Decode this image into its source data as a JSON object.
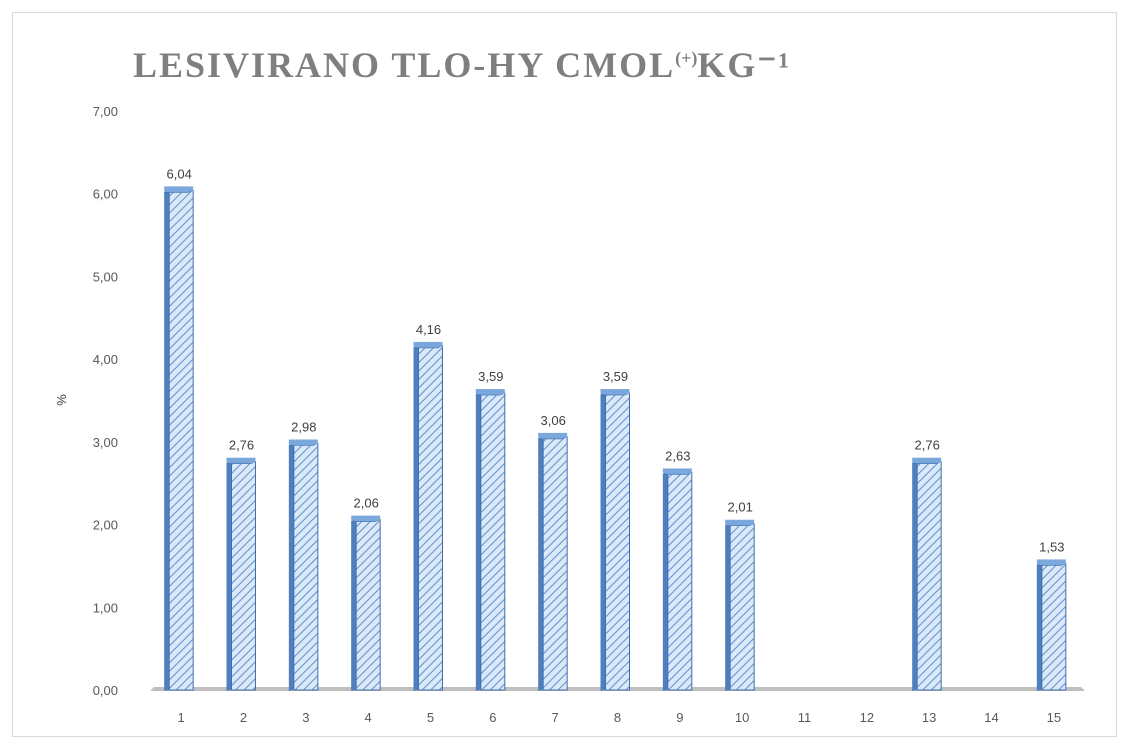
{
  "chart_data": {
    "type": "bar",
    "title_main": "LESIVIRANO TLO-HY CMOL",
    "title_sup": "(+)",
    "title_end": "KG⁻¹",
    "ylabel": "%",
    "xlabel": "",
    "ylim": [
      0,
      7
    ],
    "yticks": [
      "0,00",
      "1,00",
      "2,00",
      "3,00",
      "4,00",
      "5,00",
      "6,00",
      "7,00"
    ],
    "categories": [
      "1",
      "2",
      "3",
      "4",
      "5",
      "6",
      "7",
      "8",
      "9",
      "10",
      "11",
      "12",
      "13",
      "14",
      "15"
    ],
    "values": [
      6.04,
      2.76,
      2.98,
      2.06,
      4.16,
      3.59,
      3.06,
      3.59,
      2.63,
      2.01,
      null,
      null,
      2.76,
      null,
      1.53
    ],
    "data_labels": [
      "6,04",
      "2,76",
      "2,98",
      "2,06",
      "4,16",
      "3,59",
      "3,06",
      "3,59",
      "2,63",
      "2,01",
      "",
      "",
      "2,76",
      "",
      "1,53"
    ],
    "grid": false,
    "legend": "none",
    "colors": {
      "bar_fill": "#dbe8f7",
      "bar_hatch": "#5b8fd0",
      "bar_edge": "#3f6fad",
      "bar_side": "#4f7fbf",
      "bar_top": "#7aa7dc",
      "floor": "#bfbfbf"
    }
  }
}
